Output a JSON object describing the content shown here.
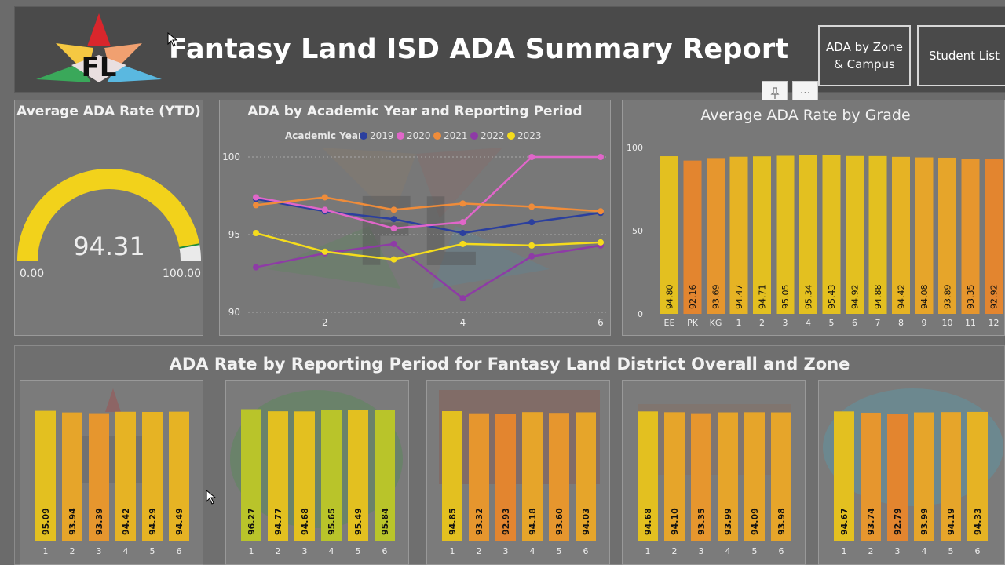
{
  "header": {
    "title": "Fantasy Land ISD ADA Summary Report",
    "logo_text": "FL",
    "nav_buttons": [
      "ADA by Zone & Campus",
      "Student List"
    ]
  },
  "toolbar_icons": [
    "pin-icon",
    "more-options-icon"
  ],
  "gauge": {
    "title": "Average ADA Rate (YTD)",
    "value": "94.31",
    "min_label": "0.00",
    "max_label": "100.00",
    "value_num": 94.31,
    "min": 0,
    "max": 100,
    "fill_color": "#f2d21b"
  },
  "line_chart": {
    "title": "ADA by Academic Year and Reporting Period",
    "legend_title": "Academic Year",
    "chart_data": {
      "type": "line",
      "x": [
        1,
        2,
        3,
        4,
        5,
        6
      ],
      "x_tick_labels": [
        "2",
        "4",
        "6"
      ],
      "y_ticks": [
        "100",
        "95",
        "90"
      ],
      "ylim": [
        90,
        100
      ],
      "series": [
        {
          "name": "2019",
          "color": "#2b3f9e",
          "values": [
            97.3,
            96.5,
            96.0,
            95.1,
            95.8,
            96.4
          ]
        },
        {
          "name": "2020",
          "color": "#e066c9",
          "values": [
            97.4,
            96.6,
            95.4,
            95.8,
            100.0,
            100.0
          ]
        },
        {
          "name": "2021",
          "color": "#ef8c3a",
          "values": [
            96.9,
            97.4,
            96.6,
            97.0,
            96.8,
            96.5
          ]
        },
        {
          "name": "2022",
          "color": "#8e3ba6",
          "values": [
            92.9,
            93.8,
            94.4,
            90.9,
            93.6,
            94.3
          ]
        },
        {
          "name": "2023",
          "color": "#f5dc1c",
          "values": [
            95.1,
            93.9,
            93.4,
            94.4,
            94.3,
            94.5
          ]
        }
      ]
    }
  },
  "grade_chart": {
    "title": "Average ADA Rate by Grade",
    "chart_data": {
      "type": "bar",
      "categories": [
        "EE",
        "PK",
        "KG",
        "1",
        "2",
        "3",
        "4",
        "5",
        "6",
        "7",
        "8",
        "9",
        "10",
        "11",
        "12"
      ],
      "values": [
        94.8,
        92.16,
        93.69,
        94.47,
        94.71,
        95.05,
        95.34,
        95.43,
        94.92,
        94.88,
        94.42,
        94.08,
        93.89,
        93.35,
        92.92
      ],
      "labels": [
        "94.80",
        "92.16",
        "93.69",
        "94.47",
        "94.71",
        "95.05",
        "95.34",
        "95.43",
        "94.92",
        "94.88",
        "94.42",
        "94.08",
        "93.89",
        "93.35",
        "92.92"
      ],
      "y_ticks": [
        "100",
        "50",
        "0"
      ],
      "ylim": [
        0,
        100
      ]
    }
  },
  "zone_section": {
    "title": "ADA Rate by Reporting Period for Fantasy Land District Overall and Zone",
    "chart_data": [
      {
        "type": "bar",
        "categories": [
          "1",
          "2",
          "3",
          "4",
          "5",
          "6"
        ],
        "values": [
          95.09,
          93.94,
          93.39,
          94.42,
          94.29,
          94.49
        ],
        "labels": [
          "95.09",
          "93.94",
          "93.39",
          "94.42",
          "94.29",
          "94.49"
        ]
      },
      {
        "type": "bar",
        "categories": [
          "1",
          "2",
          "3",
          "4",
          "5",
          "6"
        ],
        "values": [
          96.27,
          94.77,
          94.68,
          95.65,
          95.49,
          95.84
        ],
        "labels": [
          "96.27",
          "94.77",
          "94.68",
          "95.65",
          "95.49",
          "95.84"
        ]
      },
      {
        "type": "bar",
        "categories": [
          "1",
          "2",
          "3",
          "4",
          "5",
          "6"
        ],
        "values": [
          94.85,
          93.32,
          92.93,
          94.18,
          93.6,
          94.03
        ],
        "labels": [
          "94.85",
          "93.32",
          "92.93",
          "94.18",
          "93.60",
          "94.03"
        ]
      },
      {
        "type": "bar",
        "categories": [
          "1",
          "2",
          "3",
          "4",
          "5",
          "6"
        ],
        "values": [
          94.68,
          94.1,
          93.35,
          93.99,
          94.09,
          93.98
        ],
        "labels": [
          "94.68",
          "94.10",
          "93.35",
          "93.99",
          "94.09",
          "93.98"
        ]
      },
      {
        "type": "bar",
        "categories": [
          "1",
          "2",
          "3",
          "4",
          "5",
          "6"
        ],
        "values": [
          94.67,
          93.74,
          92.79,
          93.99,
          94.19,
          94.33
        ],
        "labels": [
          "94.67",
          "93.74",
          "92.79",
          "93.99",
          "94.19",
          "94.33"
        ]
      }
    ]
  }
}
